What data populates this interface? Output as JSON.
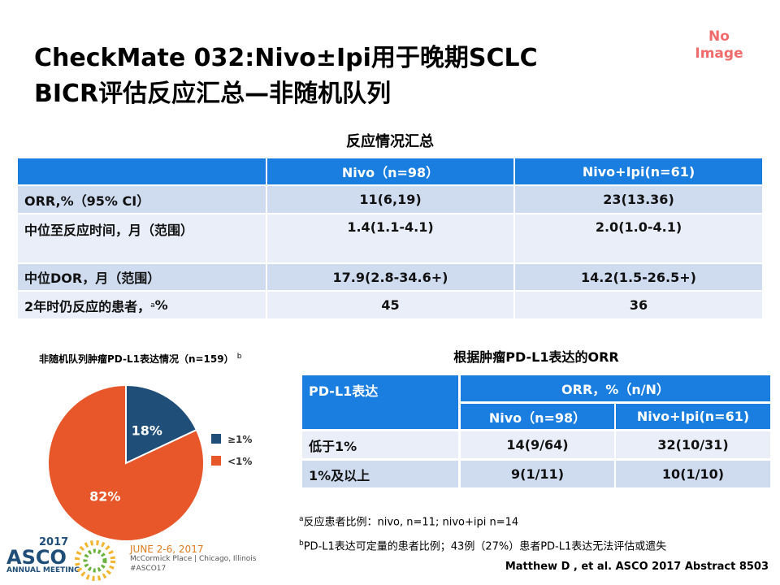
{
  "header": {
    "title_lines": [
      "CheckMate 032:Nivo±Ipi用于晚期SCLC",
      "BICR评估反应汇总—非随机队列"
    ],
    "no_image": [
      "No",
      "Image"
    ]
  },
  "table1": {
    "title": "反应情况汇总",
    "columns": [
      "Nivo（n=98）",
      "Nivo+Ipi(n=61)"
    ],
    "rows": [
      {
        "label": "ORR,%（95% CI）",
        "cells": [
          "11(6,19)",
          "23(13.36)"
        ]
      },
      {
        "label": "中位至反应时间，月（范围）",
        "cells": [
          "1.4(1.1-4.1)",
          "2.0(1.0-4.1)"
        ]
      },
      {
        "label": "中位DOR，月（范围）",
        "cells": [
          "17.9(2.8-34.6+)",
          "14.2(1.5-26.5+)"
        ]
      },
      {
        "label": "2年时仍反应的患者，",
        "label_sup": "a",
        "label_suffix": "%",
        "cells": [
          "45",
          "36"
        ]
      }
    ]
  },
  "chart_data": {
    "type": "pie",
    "title": "非随机队列肿瘤PD-L1表达情况（n=159）",
    "title_sup": "b",
    "categories": [
      "≥1%",
      "<1%"
    ],
    "values": [
      18,
      82
    ],
    "value_labels": [
      "18%",
      "82%"
    ],
    "colors": [
      "#1f4e79",
      "#e8572a"
    ]
  },
  "table2": {
    "title": "根据肿瘤PD-L1表达的ORR",
    "corner": "PD-L1表达",
    "group": "ORR，%（n/N）",
    "columns": [
      "Nivo（n=98）",
      "Nivo+Ipi(n=61)"
    ],
    "rows": [
      {
        "label": "低于1%",
        "cells": [
          "14(9/64)",
          "32(10/31)"
        ]
      },
      {
        "label": "1%及以上",
        "cells": [
          "9(1/11)",
          "10(1/10)"
        ]
      }
    ]
  },
  "footnotes": [
    {
      "marker": "a",
      "text": "反应患者比例：nivo, n=11; nivo+ipi n=14"
    },
    {
      "marker": "b",
      "text": "PD-L1表达可定量的患者比例；43例（27%）患者PD-L1表达无法评估或遗失"
    }
  ],
  "logo": {
    "year": "2017",
    "name": "ASCO",
    "meeting": "ANNUAL MEETING",
    "dates": "JUNE 2-6, 2017",
    "place": "McCormick Place | Chicago, Illinois",
    "tag": "#ASCO17"
  },
  "citation": "Matthew D , et al.  ASCO  2017 Abstract 8503"
}
